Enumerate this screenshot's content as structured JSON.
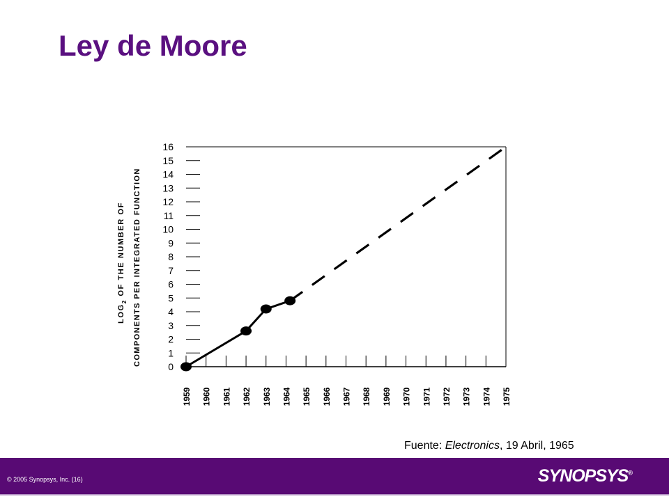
{
  "slide": {
    "title": "Ley de Moore",
    "caption_prefix": "Fuente: ",
    "caption_source": "Electronics",
    "caption_suffix": ", 19 Abril, 1965"
  },
  "footer": {
    "copyright": "© 2005 Synopsys, Inc. (16)",
    "logo_text": "SYNOPSYS",
    "logo_mark": "®",
    "background_color": "#580a74"
  },
  "chart_data": {
    "type": "line",
    "title": "",
    "ylabel_line1": "LOG",
    "ylabel_subscript": "2",
    "ylabel_line1_rest": " OF THE NUMBER OF",
    "ylabel_line2": "COMPONENTS PER INTEGRATED FUNCTION",
    "xlabel": "",
    "x_ticks": [
      "1959",
      "1960",
      "1961",
      "1962",
      "1963",
      "1964",
      "1965",
      "1966",
      "1967",
      "1968",
      "1969",
      "1970",
      "1971",
      "1972",
      "1973",
      "1974",
      "1975"
    ],
    "y_ticks": [
      "0",
      "1",
      "2",
      "3",
      "4",
      "5",
      "6",
      "7",
      "8",
      "9",
      "10",
      "11",
      "12",
      "13",
      "14",
      "15",
      "16"
    ],
    "xlim": [
      1959,
      1975
    ],
    "ylim": [
      0,
      16
    ],
    "series": [
      {
        "style": "solid",
        "markers": true,
        "points": [
          {
            "x": 1959,
            "y": 0
          },
          {
            "x": 1962,
            "y": 2.6
          },
          {
            "x": 1963,
            "y": 4.2
          },
          {
            "x": 1964.2,
            "y": 4.8
          }
        ]
      },
      {
        "style": "dashed",
        "markers": false,
        "points": [
          {
            "x": 1964.2,
            "y": 4.8
          },
          {
            "x": 1975,
            "y": 16
          }
        ]
      }
    ],
    "grid": false,
    "colors": {
      "line": "#000000",
      "frame": "#000000"
    }
  }
}
